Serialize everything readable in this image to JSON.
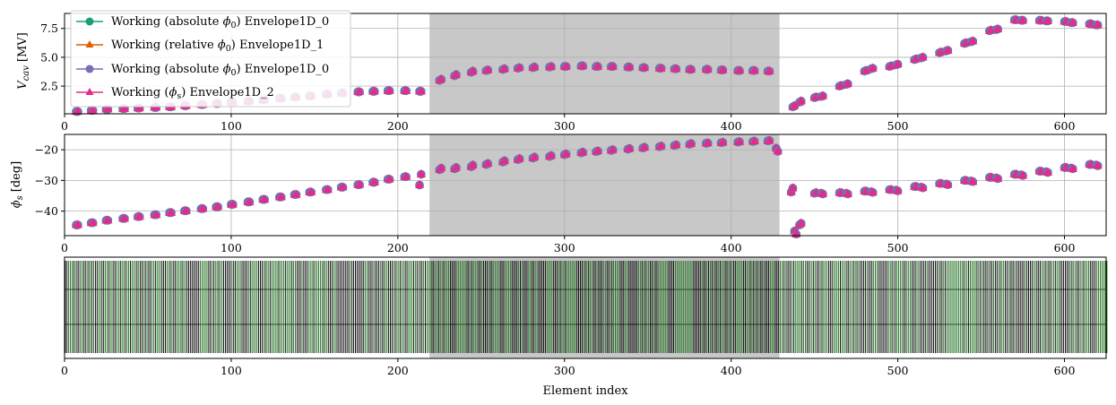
{
  "chart_data": [
    {
      "type": "scatter",
      "panel": "vcav",
      "ylabel_main": "V",
      "ylabel_sub": "cav",
      "ylabel_unit": "[MV]",
      "xlim": [
        0,
        625
      ],
      "ylim": [
        0.1,
        8.8
      ],
      "xticks": [
        0,
        100,
        200,
        300,
        400,
        500,
        600
      ],
      "yticks": [
        2.5,
        5.0,
        7.5
      ],
      "ytick_labels": [
        "2.5",
        "5.0",
        "7.5"
      ],
      "shaded_region": [
        219,
        429
      ],
      "grid": true,
      "legend": {
        "placement": "upper-left",
        "entries": [
          {
            "prefix": "Working (absolute ",
            "sym": "ϕ",
            "sub": "0",
            "suffix": ") Envelope1D_0",
            "color": "#1b9e77",
            "marker": "circle"
          },
          {
            "prefix": "Working (relative ",
            "sym": "ϕ",
            "sub": "0",
            "suffix": ") Envelope1D_1",
            "color": "#d95f02",
            "marker": "triangle"
          },
          {
            "prefix": "Working (absolute ",
            "sym": "ϕ",
            "sub": "0",
            "suffix": ") Envelope1D_0",
            "color": "#7570b3",
            "marker": "circle"
          },
          {
            "prefix": "Working (",
            "sym": "ϕ",
            "sub": "s",
            "suffix": ") Envelope1D_2",
            "color": "#e7298a",
            "marker": "triangle"
          }
        ]
      },
      "series": [
        {
          "x": [
            7,
            8,
            16,
            17,
            25,
            26,
            35,
            36,
            44,
            45,
            54,
            55,
            63,
            64,
            72,
            73,
            82,
            83,
            91,
            92,
            100,
            101,
            110,
            111,
            119,
            120,
            129,
            130,
            138,
            139,
            147,
            148,
            157,
            158,
            166,
            167,
            176,
            177,
            185,
            186,
            194,
            195,
            204,
            205,
            213,
            214,
            225,
            226,
            234,
            235,
            244,
            245,
            253,
            254,
            263,
            264,
            272,
            273,
            281,
            282,
            291,
            292,
            300,
            301,
            310,
            311,
            319,
            320,
            328,
            329,
            338,
            339,
            347,
            348,
            357,
            358,
            366,
            367,
            375,
            376,
            385,
            386,
            394,
            395,
            404,
            405,
            413,
            414,
            422,
            423,
            437,
            438,
            441,
            442,
            450,
            451,
            454,
            455,
            465,
            466,
            469,
            470,
            480,
            481,
            484,
            485,
            495,
            496,
            499,
            500,
            510,
            511,
            514,
            515,
            525,
            526,
            529,
            530,
            540,
            541,
            544,
            545,
            555,
            556,
            559,
            560,
            570,
            571,
            574,
            575,
            585,
            586,
            589,
            590,
            600,
            601,
            604,
            605,
            615,
            616,
            619,
            620
          ],
          "y": [
            0.3,
            0.3,
            0.4,
            0.4,
            0.5,
            0.5,
            0.55,
            0.55,
            0.6,
            0.6,
            0.65,
            0.65,
            0.7,
            0.7,
            0.8,
            0.8,
            0.9,
            0.9,
            1.0,
            1.0,
            1.1,
            1.1,
            1.2,
            1.2,
            1.3,
            1.3,
            1.45,
            1.45,
            1.55,
            1.55,
            1.65,
            1.65,
            1.8,
            1.8,
            1.9,
            1.9,
            2.0,
            2.0,
            2.05,
            2.05,
            2.1,
            2.1,
            2.1,
            2.1,
            2.05,
            2.05,
            3.0,
            3.1,
            3.4,
            3.5,
            3.7,
            3.8,
            3.85,
            3.9,
            3.95,
            4.0,
            4.05,
            4.1,
            4.1,
            4.15,
            4.15,
            4.2,
            4.2,
            4.2,
            4.25,
            4.25,
            4.2,
            4.2,
            4.2,
            4.2,
            4.15,
            4.15,
            4.1,
            4.1,
            4.05,
            4.05,
            4.0,
            4.0,
            3.95,
            3.95,
            3.95,
            3.95,
            3.9,
            3.9,
            3.85,
            3.85,
            3.85,
            3.85,
            3.8,
            3.8,
            0.7,
            0.8,
            1.1,
            1.2,
            1.5,
            1.55,
            1.6,
            1.65,
            2.5,
            2.55,
            2.65,
            2.7,
            3.8,
            3.85,
            4.0,
            4.05,
            4.2,
            4.25,
            4.35,
            4.4,
            4.8,
            4.85,
            4.95,
            5.0,
            5.4,
            5.45,
            5.55,
            5.6,
            6.2,
            6.25,
            6.35,
            6.4,
            7.3,
            7.35,
            7.4,
            7.45,
            8.25,
            8.25,
            8.2,
            8.2,
            8.2,
            8.2,
            8.15,
            8.15,
            8.1,
            8.1,
            8.0,
            8.0,
            7.9,
            7.9,
            7.8,
            7.8
          ]
        }
      ]
    },
    {
      "type": "scatter",
      "panel": "phis",
      "ylabel_main": "ϕ",
      "ylabel_sub": "s",
      "ylabel_unit": "[deg]",
      "xlim": [
        0,
        625
      ],
      "ylim": [
        -48,
        -15
      ],
      "xticks": [
        0,
        100,
        200,
        300,
        400,
        500,
        600
      ],
      "yticks": [
        -40,
        -30,
        -20
      ],
      "ytick_labels": [
        "−40",
        "−30",
        "−20"
      ],
      "shaded_region": [
        219,
        429
      ],
      "grid": true,
      "series": [
        {
          "x": [
            7,
            8,
            16,
            17,
            25,
            26,
            35,
            36,
            44,
            45,
            54,
            55,
            63,
            64,
            72,
            73,
            82,
            83,
            91,
            92,
            100,
            101,
            110,
            111,
            119,
            120,
            129,
            130,
            138,
            139,
            147,
            148,
            157,
            158,
            166,
            167,
            176,
            177,
            185,
            186,
            194,
            195,
            204,
            205,
            213,
            214,
            225,
            226,
            234,
            235,
            244,
            245,
            253,
            254,
            263,
            264,
            272,
            273,
            281,
            282,
            291,
            292,
            300,
            301,
            310,
            311,
            319,
            320,
            328,
            329,
            338,
            339,
            347,
            348,
            357,
            358,
            366,
            367,
            375,
            376,
            385,
            386,
            394,
            395,
            404,
            405,
            413,
            414,
            422,
            423,
            427,
            428,
            436,
            437,
            438,
            439,
            441,
            442,
            450,
            451,
            454,
            455,
            465,
            466,
            469,
            470,
            480,
            481,
            484,
            485,
            495,
            496,
            499,
            500,
            510,
            511,
            514,
            515,
            525,
            526,
            529,
            530,
            540,
            541,
            544,
            545,
            555,
            556,
            559,
            560,
            570,
            571,
            574,
            575,
            585,
            586,
            589,
            590,
            600,
            601,
            604,
            605,
            615,
            616,
            619,
            620
          ],
          "y": [
            -44.5,
            -44.5,
            -43.8,
            -43.8,
            -43.0,
            -43.0,
            -42.4,
            -42.4,
            -41.8,
            -41.8,
            -41.2,
            -41.2,
            -40.5,
            -40.5,
            -39.9,
            -39.9,
            -39.2,
            -39.2,
            -38.6,
            -38.6,
            -37.8,
            -37.8,
            -37.0,
            -37.0,
            -36.2,
            -36.2,
            -35.4,
            -35.4,
            -34.6,
            -34.6,
            -33.8,
            -33.8,
            -33.0,
            -33.0,
            -32.2,
            -32.2,
            -31.4,
            -31.4,
            -30.6,
            -30.6,
            -29.6,
            -29.6,
            -28.8,
            -28.8,
            -31.5,
            -28.0,
            -26.5,
            -26.0,
            -26.2,
            -25.8,
            -25.5,
            -25.0,
            -24.8,
            -24.5,
            -24.0,
            -23.6,
            -23.2,
            -22.9,
            -22.7,
            -22.4,
            -22.2,
            -21.9,
            -21.6,
            -21.4,
            -21.0,
            -20.8,
            -20.6,
            -20.4,
            -20.2,
            -20.0,
            -19.8,
            -19.6,
            -19.4,
            -19.2,
            -19.0,
            -18.8,
            -18.6,
            -18.4,
            -18.2,
            -18.0,
            -17.9,
            -17.8,
            -17.7,
            -17.6,
            -17.5,
            -17.4,
            -17.3,
            -17.2,
            -17.1,
            -17.0,
            -19.5,
            -20.5,
            -33.8,
            -32.5,
            -46.5,
            -47.5,
            -44.5,
            -44.0,
            -34.2,
            -34.0,
            -34.2,
            -34.4,
            -34.0,
            -34.0,
            -34.2,
            -34.4,
            -33.5,
            -33.5,
            -33.7,
            -33.9,
            -33.0,
            -33.0,
            -33.2,
            -33.4,
            -32.0,
            -32.0,
            -32.2,
            -32.4,
            -31.0,
            -31.0,
            -31.2,
            -31.4,
            -30.0,
            -30.0,
            -30.2,
            -30.4,
            -29.0,
            -29.0,
            -29.2,
            -29.4,
            -28.0,
            -28.0,
            -28.2,
            -28.4,
            -27.0,
            -27.0,
            -27.2,
            -27.4,
            -25.8,
            -25.8,
            -26.0,
            -26.2,
            -24.8,
            -24.8,
            -25.0,
            -25.2
          ]
        }
      ]
    },
    {
      "type": "structure",
      "panel": "elements",
      "xlabel": "Element index",
      "xlim": [
        0,
        625
      ],
      "xticks": [
        0,
        100,
        200,
        300,
        400,
        500,
        600
      ],
      "shaded_region": [
        219,
        429
      ],
      "grid": false,
      "line_color": "#000000",
      "accent_color": "#1a6b1a"
    }
  ]
}
